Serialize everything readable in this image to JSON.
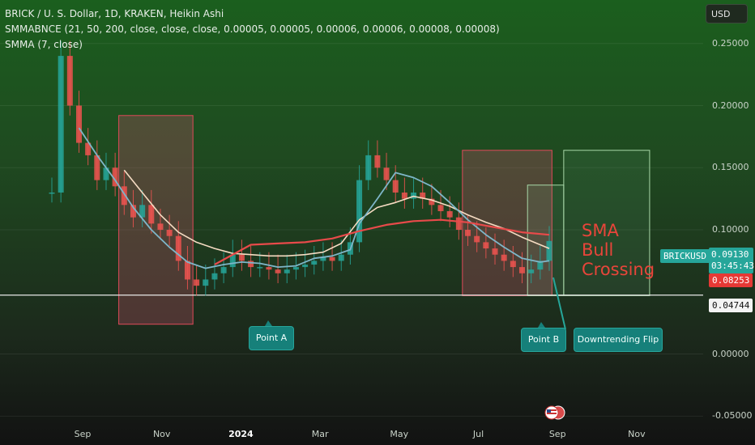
{
  "header": {
    "title": "BRICK / U. S. Dollar, 1D, KRAKEN, Heikin Ashi",
    "indicator1": "SMMABNCE (21, 50, 200, close, close, close, 0.00005, 0.00005, 0.00006, 0.00006, 0.00008, 0.00008)",
    "indicator2": "SMMA (7, close)"
  },
  "currency_button": "USD",
  "price_tags": {
    "symbol": "BRICKUSD",
    "last": "0.09130",
    "countdown": "03:45:43",
    "smma": "0.08253",
    "hline": "0.04744"
  },
  "annotations": {
    "point_a": "Point A",
    "point_b": "Point B",
    "flip": "Downtrending Flip",
    "sma_bull": "SMA Bull Crossing"
  },
  "colors": {
    "candle_up": "#26a69a",
    "candle_down": "#ef5350",
    "ma_long": "#e84a4a",
    "ma_mid": "#f6dcc3",
    "ma_short": "#7eb6c9",
    "box_red": "#e04a5a",
    "box_green": "#a8d8a8",
    "hline": "#e8e8e8",
    "last_tag": "#26a69a",
    "smma_tag": "#e53935"
  },
  "chart_data": {
    "type": "line",
    "ylim": [
      -0.055,
      0.285
    ],
    "yticks": [
      "0.25000",
      "0.20000",
      "0.15000",
      "0.10000",
      "0.00000",
      "-0.05000"
    ],
    "ytick_values": [
      0.25,
      0.2,
      0.15,
      0.1,
      0.0,
      -0.05
    ],
    "xticks": [
      "Sep",
      "Nov",
      "2024",
      "Mar",
      "May",
      "Jul",
      "Sep",
      "Nov"
    ],
    "xtick_bold": [
      false,
      false,
      true,
      false,
      false,
      false,
      false,
      false
    ],
    "hline": 0.04744,
    "price": [
      [
        0,
        0.13
      ],
      [
        1,
        0.24
      ],
      [
        2,
        0.2
      ],
      [
        3,
        0.17
      ],
      [
        4,
        0.16
      ],
      [
        5,
        0.14
      ],
      [
        6,
        0.15
      ],
      [
        7,
        0.135
      ],
      [
        8,
        0.12
      ],
      [
        9,
        0.11
      ],
      [
        10,
        0.12
      ],
      [
        11,
        0.105
      ],
      [
        12,
        0.1
      ],
      [
        13,
        0.095
      ],
      [
        14,
        0.075
      ],
      [
        15,
        0.06
      ],
      [
        16,
        0.055
      ],
      [
        17,
        0.06
      ],
      [
        18,
        0.065
      ],
      [
        19,
        0.07
      ],
      [
        20,
        0.08
      ],
      [
        21,
        0.075
      ],
      [
        22,
        0.07
      ],
      [
        23,
        0.07
      ],
      [
        24,
        0.068
      ],
      [
        25,
        0.065
      ],
      [
        26,
        0.068
      ],
      [
        27,
        0.07
      ],
      [
        28,
        0.072
      ],
      [
        29,
        0.075
      ],
      [
        30,
        0.078
      ],
      [
        31,
        0.075
      ],
      [
        32,
        0.08
      ],
      [
        33,
        0.09
      ],
      [
        34,
        0.14
      ],
      [
        35,
        0.16
      ],
      [
        36,
        0.15
      ],
      [
        37,
        0.14
      ],
      [
        38,
        0.13
      ],
      [
        39,
        0.125
      ],
      [
        40,
        0.13
      ],
      [
        41,
        0.125
      ],
      [
        42,
        0.12
      ],
      [
        43,
        0.115
      ],
      [
        44,
        0.11
      ],
      [
        45,
        0.1
      ],
      [
        46,
        0.095
      ],
      [
        47,
        0.09
      ],
      [
        48,
        0.085
      ],
      [
        49,
        0.08
      ],
      [
        50,
        0.075
      ],
      [
        51,
        0.07
      ],
      [
        52,
        0.065
      ],
      [
        53,
        0.068
      ],
      [
        54,
        0.075
      ],
      [
        55,
        0.091
      ]
    ],
    "ma_long": [
      [
        18,
        0.072
      ],
      [
        22,
        0.088
      ],
      [
        25,
        0.089
      ],
      [
        28,
        0.09
      ],
      [
        31,
        0.093
      ],
      [
        34,
        0.099
      ],
      [
        37,
        0.104
      ],
      [
        40,
        0.107
      ],
      [
        43,
        0.108
      ],
      [
        46,
        0.106
      ],
      [
        49,
        0.102
      ],
      [
        52,
        0.098
      ],
      [
        55,
        0.096
      ]
    ],
    "ma_mid": [
      [
        8,
        0.148
      ],
      [
        10,
        0.13
      ],
      [
        12,
        0.112
      ],
      [
        14,
        0.098
      ],
      [
        16,
        0.09
      ],
      [
        18,
        0.085
      ],
      [
        20,
        0.081
      ],
      [
        22,
        0.08
      ],
      [
        24,
        0.079
      ],
      [
        26,
        0.079
      ],
      [
        28,
        0.08
      ],
      [
        30,
        0.082
      ],
      [
        32,
        0.089
      ],
      [
        34,
        0.108
      ],
      [
        36,
        0.118
      ],
      [
        38,
        0.122
      ],
      [
        40,
        0.127
      ],
      [
        42,
        0.124
      ],
      [
        44,
        0.119
      ],
      [
        46,
        0.112
      ],
      [
        48,
        0.106
      ],
      [
        50,
        0.101
      ],
      [
        52,
        0.094
      ],
      [
        54,
        0.088
      ],
      [
        55,
        0.085
      ]
    ],
    "ma_short": [
      [
        3,
        0.182
      ],
      [
        5,
        0.16
      ],
      [
        7,
        0.14
      ],
      [
        9,
        0.118
      ],
      [
        11,
        0.1
      ],
      [
        13,
        0.086
      ],
      [
        15,
        0.074
      ],
      [
        17,
        0.069
      ],
      [
        19,
        0.072
      ],
      [
        21,
        0.074
      ],
      [
        23,
        0.073
      ],
      [
        25,
        0.07
      ],
      [
        27,
        0.071
      ],
      [
        29,
        0.077
      ],
      [
        31,
        0.079
      ],
      [
        33,
        0.084
      ],
      [
        34,
        0.105
      ],
      [
        36,
        0.125
      ],
      [
        38,
        0.146
      ],
      [
        40,
        0.142
      ],
      [
        42,
        0.135
      ],
      [
        44,
        0.122
      ],
      [
        46,
        0.108
      ],
      [
        48,
        0.096
      ],
      [
        50,
        0.086
      ],
      [
        52,
        0.077
      ],
      [
        54,
        0.074
      ],
      [
        55,
        0.075
      ]
    ]
  }
}
